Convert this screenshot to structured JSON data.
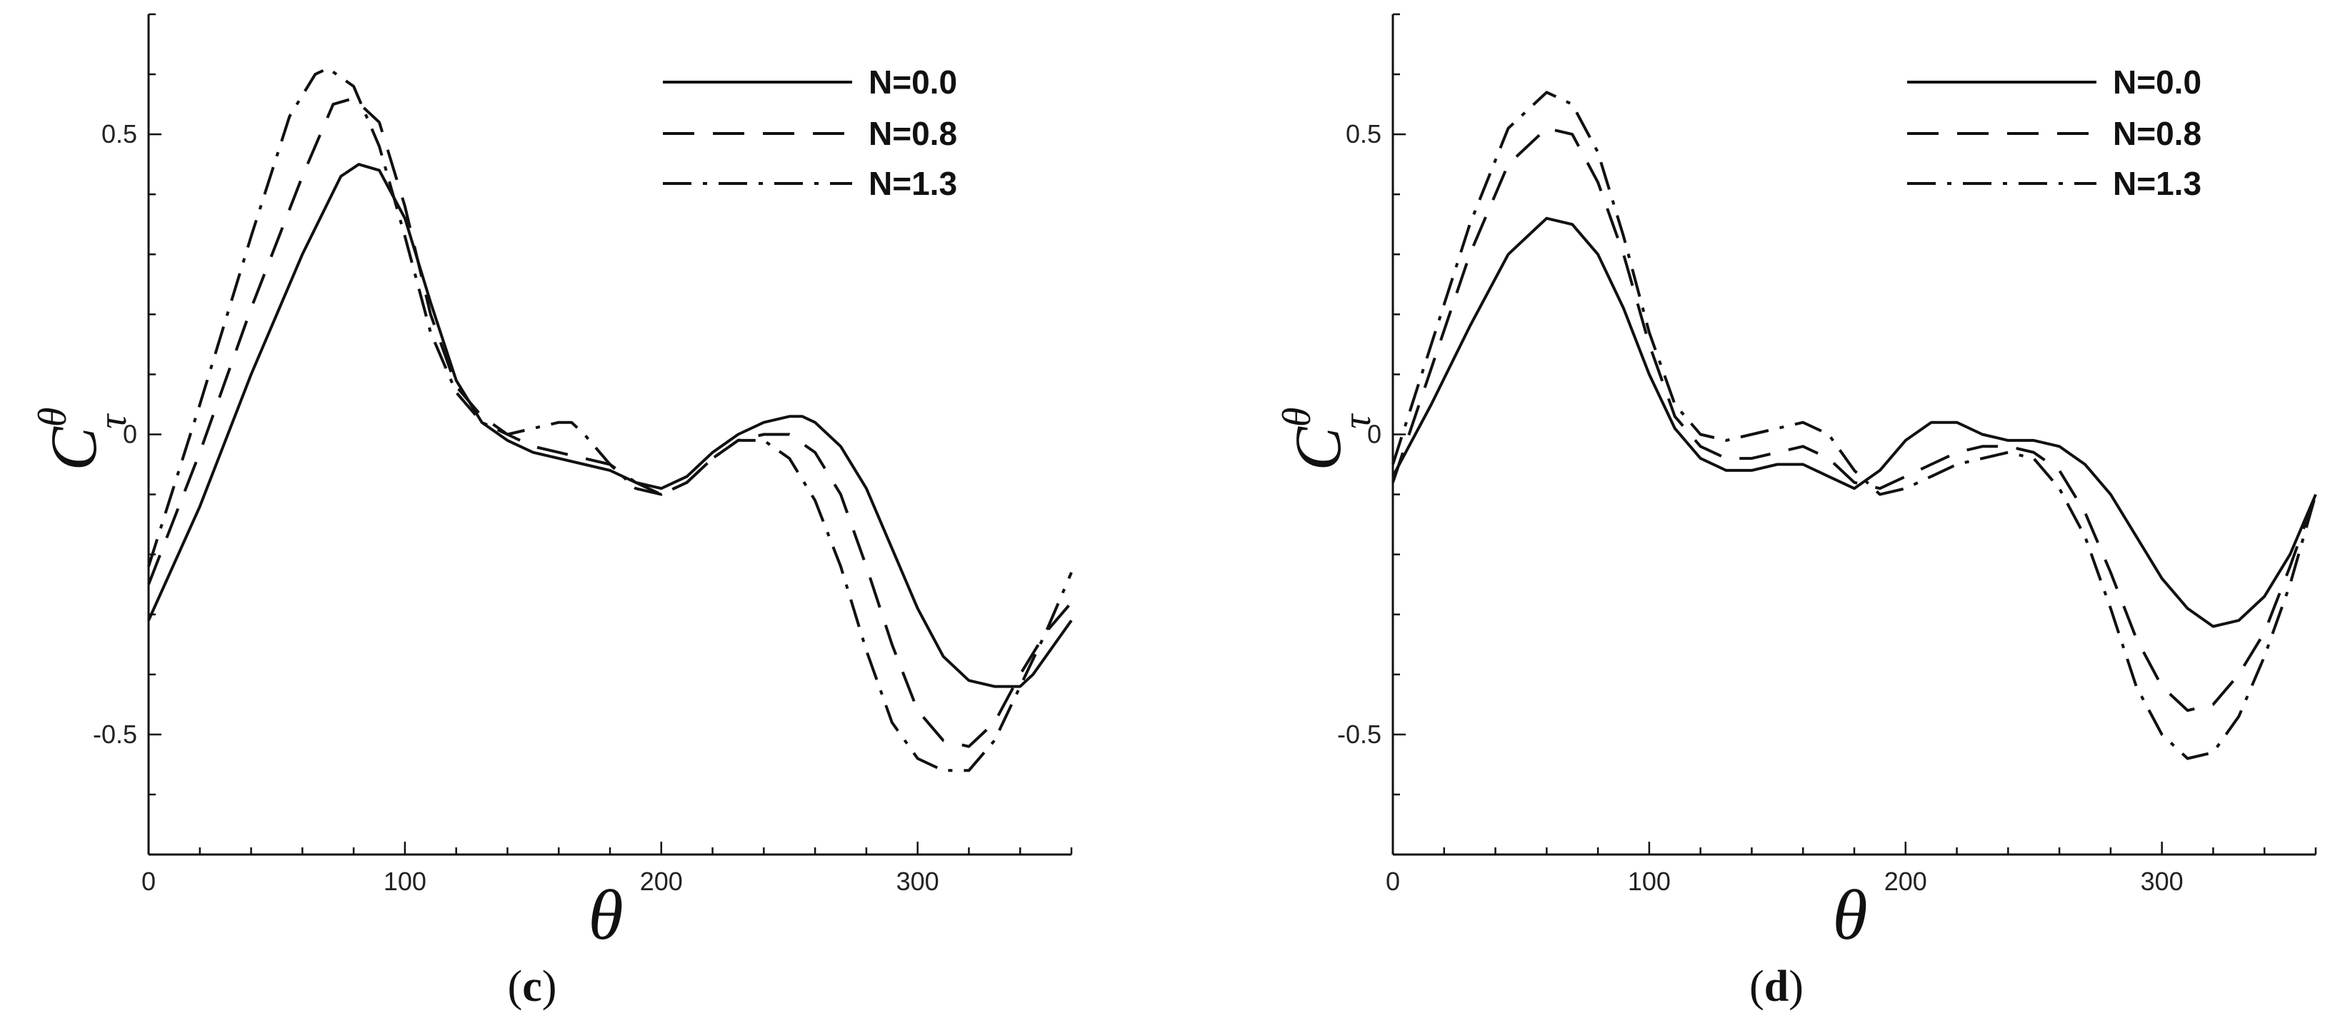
{
  "chart_data": [
    {
      "type": "line",
      "panel": "c",
      "caption": {
        "open": "(",
        "letter": "c",
        "close": ")"
      },
      "xlabel": "θ",
      "ylabel": {
        "base": "C",
        "sup": "θ",
        "sub": "τ"
      },
      "xlim": [
        0,
        360
      ],
      "ylim": [
        -0.7,
        0.7
      ],
      "xticks": [
        0,
        100,
        200,
        300
      ],
      "xtick_labels": [
        "0",
        "100",
        "200",
        "300"
      ],
      "yticks": [
        -0.5,
        0,
        0.5
      ],
      "ytick_labels": [
        "-0.5",
        "0",
        "0.5"
      ],
      "grid": false,
      "legend_position": "top-right",
      "series": [
        {
          "name": "N=0.0",
          "style": "solid",
          "x": [
            0,
            20,
            40,
            60,
            75,
            82,
            90,
            100,
            110,
            120,
            130,
            140,
            150,
            160,
            170,
            180,
            190,
            200,
            210,
            220,
            230,
            240,
            250,
            255,
            260,
            270,
            280,
            290,
            300,
            310,
            320,
            330,
            340,
            345,
            350,
            360
          ],
          "y": [
            -0.31,
            -0.12,
            0.1,
            0.3,
            0.43,
            0.45,
            0.44,
            0.36,
            0.22,
            0.09,
            0.02,
            -0.01,
            -0.03,
            -0.04,
            -0.05,
            -0.06,
            -0.08,
            -0.09,
            -0.07,
            -0.03,
            0.0,
            0.02,
            0.03,
            0.03,
            0.02,
            -0.02,
            -0.09,
            -0.19,
            -0.29,
            -0.37,
            -0.41,
            -0.42,
            -0.42,
            -0.4,
            -0.37,
            -0.31
          ]
        },
        {
          "name": "N=0.8",
          "style": "dashed",
          "x": [
            0,
            20,
            40,
            60,
            72,
            80,
            90,
            100,
            110,
            120,
            130,
            140,
            150,
            160,
            170,
            180,
            190,
            200,
            210,
            220,
            230,
            240,
            250,
            260,
            270,
            280,
            290,
            300,
            310,
            320,
            330,
            340,
            350,
            360
          ],
          "y": [
            -0.25,
            -0.03,
            0.21,
            0.43,
            0.55,
            0.56,
            0.52,
            0.38,
            0.2,
            0.08,
            0.03,
            0.0,
            -0.02,
            -0.03,
            -0.04,
            -0.05,
            -0.08,
            -0.1,
            -0.08,
            -0.04,
            -0.01,
            0.0,
            0.0,
            -0.03,
            -0.1,
            -0.22,
            -0.35,
            -0.46,
            -0.51,
            -0.52,
            -0.48,
            -0.4,
            -0.33,
            -0.28
          ]
        },
        {
          "name": "N=1.3",
          "style": "dash-dot",
          "x": [
            0,
            20,
            40,
            55,
            65,
            70,
            80,
            90,
            100,
            110,
            120,
            130,
            140,
            150,
            160,
            165,
            170,
            180,
            190,
            200,
            210,
            220,
            230,
            240,
            250,
            260,
            270,
            280,
            290,
            300,
            310,
            320,
            330,
            340,
            350,
            360
          ],
          "y": [
            -0.22,
            0.05,
            0.33,
            0.53,
            0.6,
            0.61,
            0.58,
            0.48,
            0.33,
            0.17,
            0.07,
            0.02,
            0.0,
            0.01,
            0.02,
            0.02,
            0.0,
            -0.05,
            -0.09,
            -0.1,
            -0.08,
            -0.04,
            -0.01,
            -0.01,
            -0.04,
            -0.11,
            -0.22,
            -0.36,
            -0.48,
            -0.54,
            -0.56,
            -0.56,
            -0.51,
            -0.42,
            -0.33,
            -0.23
          ]
        }
      ]
    },
    {
      "type": "line",
      "panel": "d",
      "caption": {
        "open": "(",
        "letter": "d",
        "close": ")"
      },
      "xlabel": "θ",
      "ylabel": {
        "base": "C",
        "sup": "θ",
        "sub": "τ"
      },
      "xlim": [
        0,
        360
      ],
      "ylim": [
        -0.7,
        0.7
      ],
      "xticks": [
        0,
        100,
        200,
        300
      ],
      "xtick_labels": [
        "0",
        "100",
        "200",
        "300"
      ],
      "yticks": [
        -0.5,
        0,
        0.5
      ],
      "ytick_labels": [
        "-0.5",
        "0",
        "0.5"
      ],
      "grid": false,
      "legend_position": "top-right",
      "series": [
        {
          "name": "N=0.0",
          "style": "solid",
          "x": [
            0,
            15,
            30,
            45,
            60,
            70,
            80,
            90,
            100,
            110,
            120,
            130,
            140,
            150,
            160,
            170,
            180,
            190,
            200,
            210,
            220,
            230,
            240,
            250,
            260,
            270,
            280,
            290,
            300,
            310,
            320,
            330,
            340,
            350,
            360
          ],
          "y": [
            -0.07,
            0.05,
            0.18,
            0.3,
            0.36,
            0.35,
            0.3,
            0.21,
            0.1,
            0.01,
            -0.04,
            -0.06,
            -0.06,
            -0.05,
            -0.05,
            -0.07,
            -0.09,
            -0.06,
            -0.01,
            0.02,
            0.02,
            0.0,
            -0.01,
            -0.01,
            -0.02,
            -0.05,
            -0.1,
            -0.17,
            -0.24,
            -0.29,
            -0.32,
            -0.31,
            -0.27,
            -0.2,
            -0.1
          ]
        },
        {
          "name": "N=0.8",
          "style": "dashed",
          "x": [
            0,
            15,
            30,
            45,
            60,
            70,
            80,
            90,
            100,
            110,
            120,
            130,
            140,
            150,
            160,
            170,
            180,
            190,
            200,
            210,
            220,
            230,
            240,
            250,
            260,
            270,
            280,
            290,
            300,
            310,
            320,
            330,
            340,
            350,
            360
          ],
          "y": [
            -0.08,
            0.11,
            0.3,
            0.45,
            0.51,
            0.5,
            0.42,
            0.3,
            0.15,
            0.03,
            -0.02,
            -0.04,
            -0.04,
            -0.03,
            -0.02,
            -0.04,
            -0.08,
            -0.09,
            -0.07,
            -0.05,
            -0.03,
            -0.02,
            -0.02,
            -0.03,
            -0.06,
            -0.13,
            -0.23,
            -0.34,
            -0.42,
            -0.46,
            -0.45,
            -0.4,
            -0.33,
            -0.22,
            -0.1
          ]
        },
        {
          "name": "N=1.3",
          "style": "dash-dot",
          "x": [
            0,
            15,
            30,
            45,
            60,
            70,
            80,
            90,
            100,
            110,
            120,
            130,
            140,
            150,
            160,
            170,
            180,
            190,
            200,
            210,
            220,
            230,
            240,
            250,
            260,
            270,
            280,
            290,
            300,
            310,
            320,
            330,
            340,
            350,
            360
          ],
          "y": [
            -0.05,
            0.15,
            0.35,
            0.51,
            0.57,
            0.55,
            0.47,
            0.33,
            0.17,
            0.05,
            0.0,
            -0.01,
            0.0,
            0.01,
            0.02,
            0.0,
            -0.06,
            -0.1,
            -0.09,
            -0.07,
            -0.05,
            -0.04,
            -0.03,
            -0.04,
            -0.09,
            -0.17,
            -0.29,
            -0.42,
            -0.5,
            -0.54,
            -0.53,
            -0.47,
            -0.37,
            -0.25,
            -0.1
          ]
        }
      ]
    }
  ]
}
